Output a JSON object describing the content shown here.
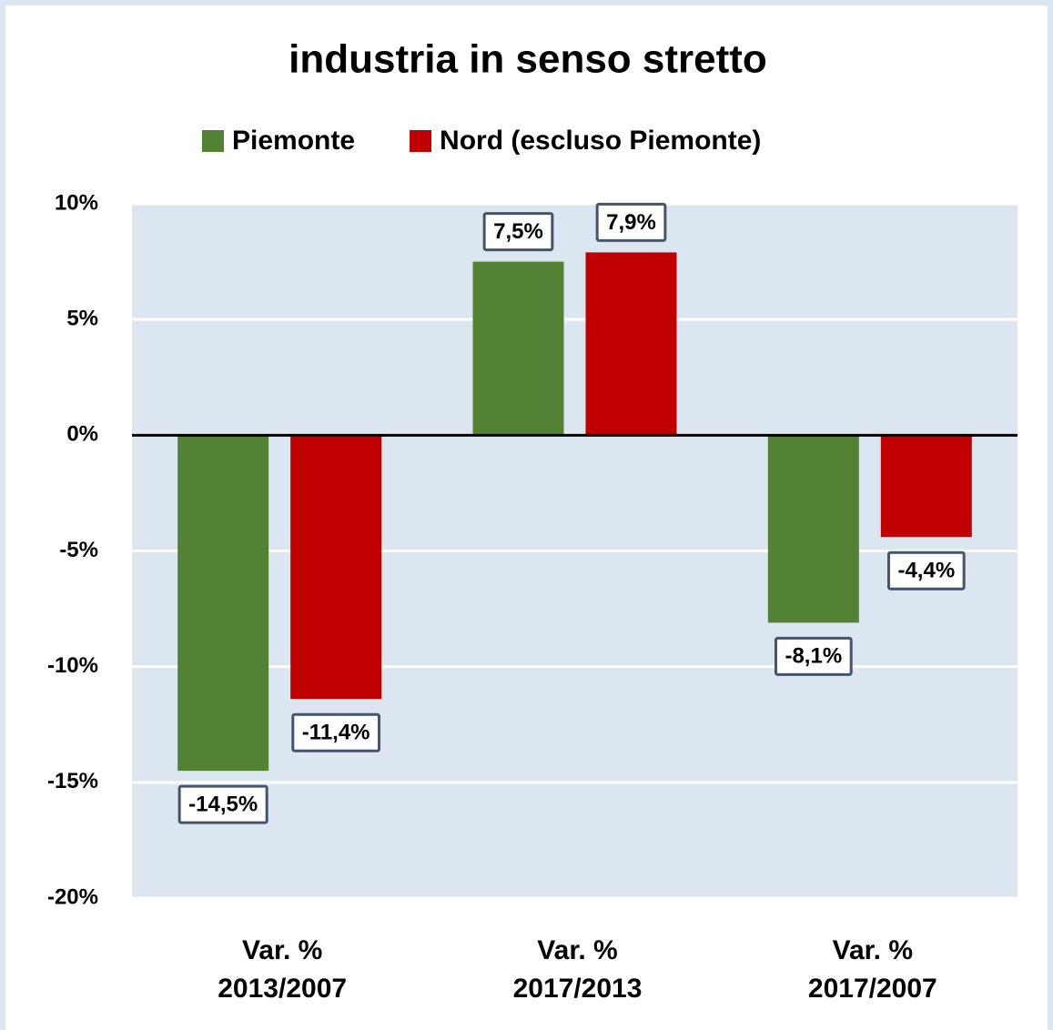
{
  "chart_data": {
    "type": "bar",
    "title": "industria in senso stretto",
    "categories": [
      "Var. %\n2013/2007",
      "Var. %\n2017/2013",
      "Var. %\n2017/2007"
    ],
    "series": [
      {
        "name": "Piemonte",
        "color": "#548235",
        "values": [
          -14.5,
          7.5,
          -8.1
        ],
        "value_labels": [
          "-14,5%",
          "7,5%",
          "-8,1%"
        ]
      },
      {
        "name": "Nord (escluso Piemonte)",
        "color": "#c00000",
        "values": [
          -11.4,
          7.9,
          -4.4
        ],
        "value_labels": [
          "-11,4%",
          "7,9%",
          "-4,4%"
        ]
      }
    ],
    "ylim": [
      -20,
      10
    ],
    "yticks": [
      {
        "value": -20,
        "label": "-20%"
      },
      {
        "value": -15,
        "label": "-15%"
      },
      {
        "value": -10,
        "label": "-10%"
      },
      {
        "value": -5,
        "label": "-5%"
      },
      {
        "value": 0,
        "label": "0%"
      },
      {
        "value": 5,
        "label": "5%"
      },
      {
        "value": 10,
        "label": "10%"
      }
    ],
    "grid": true,
    "legend": "top"
  }
}
